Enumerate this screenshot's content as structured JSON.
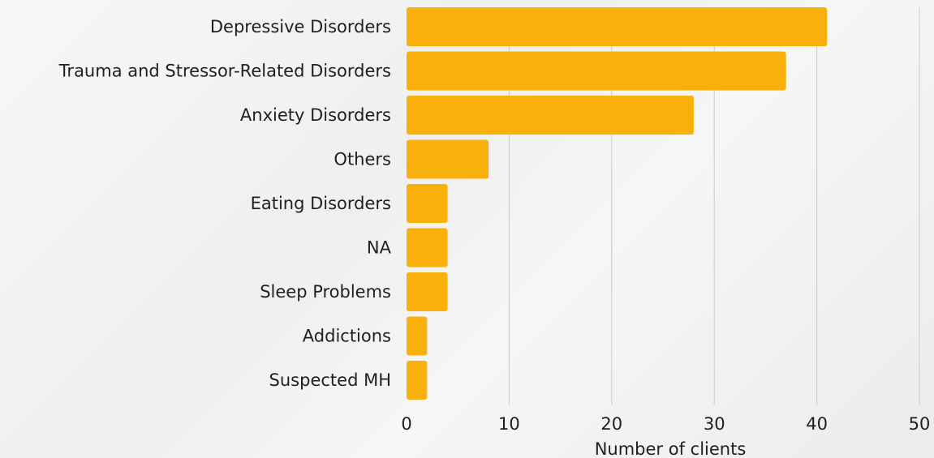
{
  "chart_data": {
    "type": "bar",
    "orientation": "horizontal",
    "title": "",
    "xlabel": "Number of clients",
    "ylabel": "",
    "xlim": [
      0,
      50
    ],
    "x_ticks": [
      "0",
      "10",
      "20",
      "30",
      "40",
      "50"
    ],
    "grid": "vertical",
    "legend": "none",
    "categories": [
      "Depressive Disorders",
      "Trauma and Stressor-Related Disorders",
      "Anxiety Disorders",
      "Others",
      "Eating Disorders",
      "NA",
      "Sleep Problems",
      "Addictions",
      "Suspected MH"
    ],
    "values": [
      41,
      37,
      28,
      8,
      4,
      4,
      4,
      2,
      2
    ],
    "bar_color": "#f9b00a"
  }
}
